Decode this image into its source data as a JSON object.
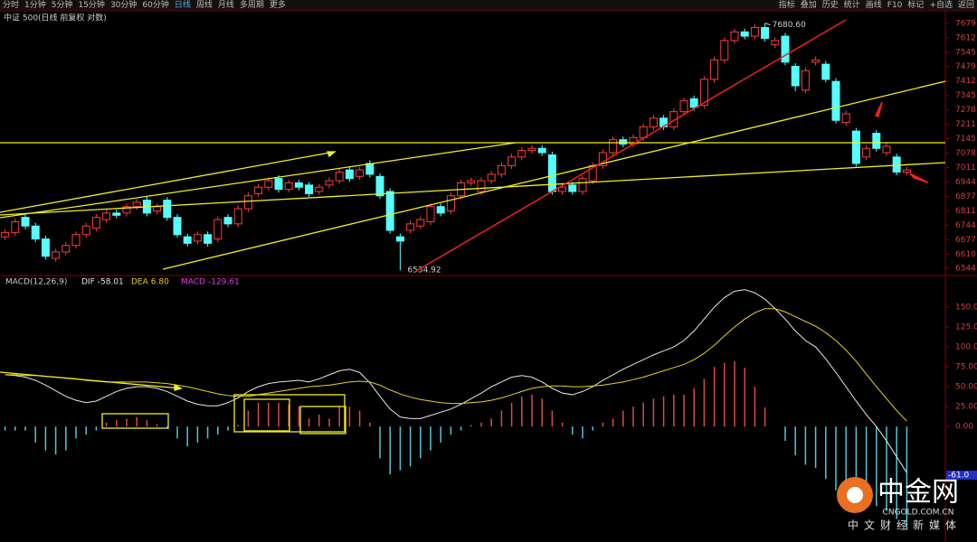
{
  "toolbar": {
    "left": [
      "分时",
      "1分钟",
      "5分钟",
      "15分钟",
      "30分钟",
      "60分钟",
      "日线",
      "周线",
      "月线",
      "多周期",
      "更多"
    ],
    "right": [
      "指标",
      "叠加",
      "历史",
      "统计",
      "画线",
      "F10",
      "标记",
      "+自选",
      "返回"
    ]
  },
  "logo": {
    "name": "中金网",
    "domain": "CNGOLD.COM.CN",
    "slogan": "中文财经新媒体"
  },
  "chart_data": [
    {
      "type": "candlestick",
      "title": "中证 500(日线 前复权 对数)",
      "open": [
        6690,
        6710,
        6780,
        6740,
        6680,
        6590,
        6620,
        6650,
        6700,
        6730,
        6770,
        6800,
        6800,
        6830,
        6860,
        6810,
        6860,
        6780,
        6690,
        6670,
        6700,
        6680,
        6780,
        6750,
        6820,
        6890,
        6920,
        6960,
        6910,
        6940,
        6930,
        6900,
        6930,
        6950,
        7000,
        6970,
        7030,
        6970,
        6900,
        6690,
        6720,
        6740,
        6760,
        6830,
        6810,
        6880,
        6940,
        6900,
        6950,
        6980,
        7020,
        7060,
        7090,
        7100,
        7070,
        6900,
        6930,
        6900,
        6950,
        7020,
        7080,
        7140,
        7120,
        7150,
        7200,
        7240,
        7200,
        7270,
        7330,
        7300,
        7420,
        7510,
        7600,
        7640,
        7620,
        7660,
        7580,
        7620,
        7480,
        7370,
        7500,
        7490,
        7410,
        7220,
        7180,
        7060,
        7170,
        7080,
        7060,
        6990
      ],
      "close": [
        6710,
        6760,
        6740,
        6680,
        6600,
        6620,
        6650,
        6700,
        6740,
        6780,
        6800,
        6790,
        6830,
        6850,
        6800,
        6830,
        6780,
        6700,
        6660,
        6700,
        6660,
        6770,
        6750,
        6820,
        6880,
        6920,
        6950,
        6910,
        6940,
        6920,
        6890,
        6920,
        6950,
        6990,
        6960,
        7000,
        6980,
        6880,
        6720,
        6670,
        6750,
        6770,
        6830,
        6800,
        6880,
        6940,
        6950,
        6950,
        6980,
        7020,
        7060,
        7090,
        7100,
        7080,
        6900,
        6920,
        6900,
        6960,
        7020,
        7080,
        7140,
        7120,
        7150,
        7200,
        7240,
        7200,
        7270,
        7320,
        7290,
        7420,
        7510,
        7600,
        7640,
        7620,
        7660,
        7610,
        7600,
        7500,
        7390,
        7460,
        7510,
        7420,
        7230,
        7260,
        7030,
        7100,
        7100,
        7110,
        6990,
        7000
      ],
      "high": [
        6725,
        6775,
        6795,
        6755,
        6695,
        6635,
        6665,
        6715,
        6755,
        6795,
        6815,
        6815,
        6845,
        6865,
        6875,
        6845,
        6875,
        6795,
        6705,
        6715,
        6715,
        6785,
        6795,
        6835,
        6895,
        6935,
        6965,
        6975,
        6955,
        6955,
        6945,
        6935,
        6965,
        7005,
        7015,
        7015,
        7045,
        6985,
        6915,
        6705,
        6765,
        6785,
        6845,
        6845,
        6895,
        6955,
        6965,
        6965,
        6995,
        7035,
        7075,
        7105,
        7115,
        7115,
        7085,
        6935,
        6945,
        6975,
        7035,
        7095,
        7155,
        7155,
        7165,
        7215,
        7255,
        7255,
        7285,
        7335,
        7345,
        7435,
        7525,
        7615,
        7655,
        7655,
        7675,
        7680.6,
        7615,
        7635,
        7495,
        7475,
        7525,
        7505,
        7425,
        7275,
        7195,
        7115,
        7185,
        7125,
        7075,
        7015
      ],
      "low": [
        6675,
        6695,
        6725,
        6665,
        6585,
        6575,
        6605,
        6635,
        6685,
        6715,
        6755,
        6775,
        6785,
        6815,
        6785,
        6795,
        6765,
        6685,
        6645,
        6655,
        6645,
        6665,
        6735,
        6735,
        6805,
        6875,
        6905,
        6895,
        6895,
        6905,
        6875,
        6885,
        6915,
        6935,
        6945,
        6955,
        6965,
        6865,
        6705,
        6534.92,
        6705,
        6725,
        6745,
        6785,
        6795,
        6865,
        6925,
        6885,
        6935,
        6965,
        7005,
        7045,
        7075,
        7065,
        6885,
        6885,
        6885,
        6885,
        6935,
        7005,
        7065,
        7105,
        7105,
        7135,
        7185,
        7185,
        7185,
        7255,
        7275,
        7285,
        7405,
        7495,
        7585,
        7605,
        7605,
        7595,
        7565,
        7485,
        7365,
        7355,
        7485,
        7405,
        7215,
        7205,
        7015,
        7045,
        7085,
        7065,
        6975,
        6975
      ],
      "high_label": "7680.60",
      "low_label": "6534.92",
      "up_color": "#ff3c3c",
      "down_color": "#54ffff",
      "ylim": [
        6519,
        7704
      ],
      "yticks": [
        7679,
        7612,
        7545,
        7479,
        7412,
        7345,
        7278,
        7211,
        7145,
        7078,
        7011,
        6944,
        6877,
        6811,
        6744,
        6677,
        6610,
        6544
      ]
    },
    {
      "type": "macd",
      "title": "MACD(12,26,9)",
      "series": [
        {
          "name": "DIF",
          "color": "#e8e8e8",
          "values": [
            65,
            64,
            62,
            58,
            52,
            45,
            38,
            33,
            30,
            32,
            38,
            44,
            48,
            50,
            50,
            48,
            44,
            38,
            32,
            28,
            26,
            26,
            30,
            36,
            44,
            50,
            54,
            56,
            57,
            58,
            56,
            60,
            65,
            70,
            72,
            68,
            55,
            38,
            22,
            12,
            10,
            10,
            14,
            18,
            22,
            28,
            35,
            42,
            50,
            56,
            62,
            64,
            62,
            56,
            48,
            42,
            40,
            44,
            50,
            58,
            65,
            72,
            78,
            84,
            90,
            95,
            100,
            108,
            120,
            135,
            150,
            162,
            170,
            172,
            168,
            160,
            148,
            135,
            120,
            108,
            100,
            85,
            68,
            50,
            32,
            15,
            0,
            -18,
            -38,
            -58.01
          ]
        },
        {
          "name": "DEA",
          "color": "#e6d21e",
          "values": [
            65,
            65,
            64,
            64,
            63,
            62,
            61,
            60,
            58,
            57,
            56,
            56,
            56,
            56,
            56,
            55,
            54,
            52,
            50,
            47,
            44,
            41,
            39,
            38,
            38,
            40,
            42,
            44,
            46,
            48,
            50,
            51,
            52,
            54,
            56,
            57,
            56,
            52,
            46,
            41,
            37,
            34,
            32,
            30,
            29,
            29,
            30,
            31,
            33,
            36,
            40,
            44,
            48,
            50,
            51,
            51,
            50,
            50,
            51,
            52,
            54,
            56,
            59,
            62,
            66,
            70,
            74,
            78,
            84,
            92,
            102,
            114,
            125,
            135,
            143,
            148,
            148,
            144,
            138,
            132,
            126,
            118,
            108,
            96,
            82,
            66,
            50,
            35,
            20,
            6.8
          ]
        },
        {
          "name": "MACD",
          "color": "#e040e0",
          "values": [
            -5,
            -5,
            -5,
            -20,
            -30,
            -35,
            -30,
            -15,
            -10,
            -5,
            5,
            8,
            10,
            12,
            8,
            3,
            -2,
            -15,
            -25,
            -20,
            -15,
            -10,
            -5,
            2,
            20,
            30,
            30,
            30,
            28,
            25,
            10,
            15,
            10,
            25,
            25,
            20,
            5,
            -40,
            -60,
            -55,
            -50,
            -40,
            -30,
            -20,
            -10,
            -5,
            2,
            5,
            10,
            20,
            30,
            38,
            40,
            35,
            20,
            5,
            -10,
            -15,
            -5,
            5,
            10,
            20,
            25,
            30,
            35,
            38,
            40,
            40,
            48,
            60,
            75,
            80,
            82,
            74,
            50,
            24,
            0,
            -18,
            -36,
            -48,
            -52,
            -66,
            -80,
            -92,
            -100,
            -102,
            -100,
            -106,
            -116,
            -129.61
          ]
        }
      ],
      "legend_labels": [
        "-58.01",
        "6.80",
        "-129.61"
      ],
      "pos_color": "#e04848",
      "neg_color": "#4ec8d8",
      "ylim": [
        -145,
        184
      ],
      "yticks": [
        {
          "value": 150,
          "label": "150.0"
        },
        {
          "value": 125,
          "label": "125.0"
        },
        {
          "value": 100,
          "label": "100.0"
        },
        {
          "value": 75,
          "label": "75.00"
        },
        {
          "value": 50,
          "label": "50.00"
        },
        {
          "value": 25,
          "label": "25.00"
        },
        {
          "value": 0,
          "label": "0.00"
        }
      ],
      "marker": {
        "value": -61,
        "label": "-61.0"
      }
    }
  ]
}
